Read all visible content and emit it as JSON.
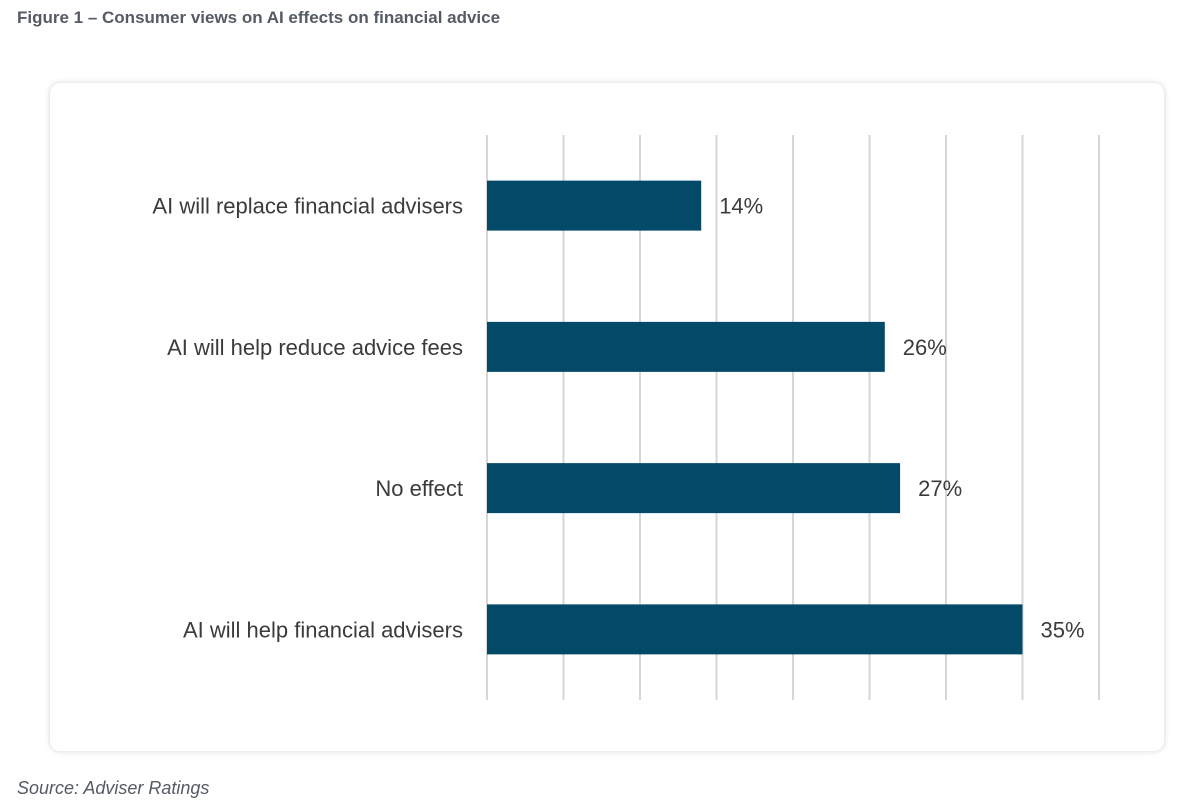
{
  "figure": {
    "title": "Figure 1 – Consumer views on AI effects on financial advice",
    "source": "Source: Adviser Ratings"
  },
  "colors": {
    "bar": "#034a69",
    "grid": "#d6d6d6",
    "text": "#3b3b3b"
  },
  "chart_data": {
    "type": "bar",
    "orientation": "horizontal",
    "categories": [
      "AI will replace financial advisers",
      "AI will help reduce advice fees",
      "No effect",
      "AI will help financial advisers"
    ],
    "values": [
      14,
      26,
      27,
      35
    ],
    "data_labels": [
      "14%",
      "26%",
      "27%",
      "35%"
    ],
    "xlim": [
      0,
      40
    ],
    "x_grid_step": 5,
    "grid": true,
    "legend": "none",
    "title": "",
    "xlabel": "",
    "ylabel": ""
  }
}
